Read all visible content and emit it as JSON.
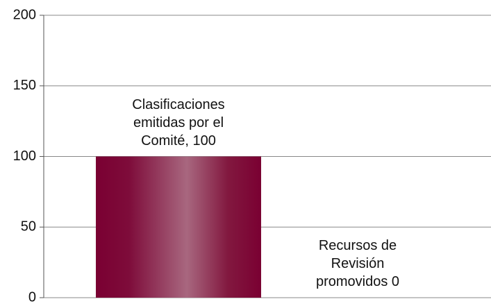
{
  "chart_data": {
    "type": "bar",
    "categories": [
      null,
      null
    ],
    "values": [
      100,
      0
    ],
    "value_labels": [
      "Clasificaciones emitidas por el Comité, 100",
      "Recursos de Revisión promovidos 0"
    ],
    "color": "#7a0032",
    "ylim": [
      0,
      200
    ],
    "yticks": [
      0,
      50,
      100,
      150,
      200
    ],
    "grid": true
  }
}
